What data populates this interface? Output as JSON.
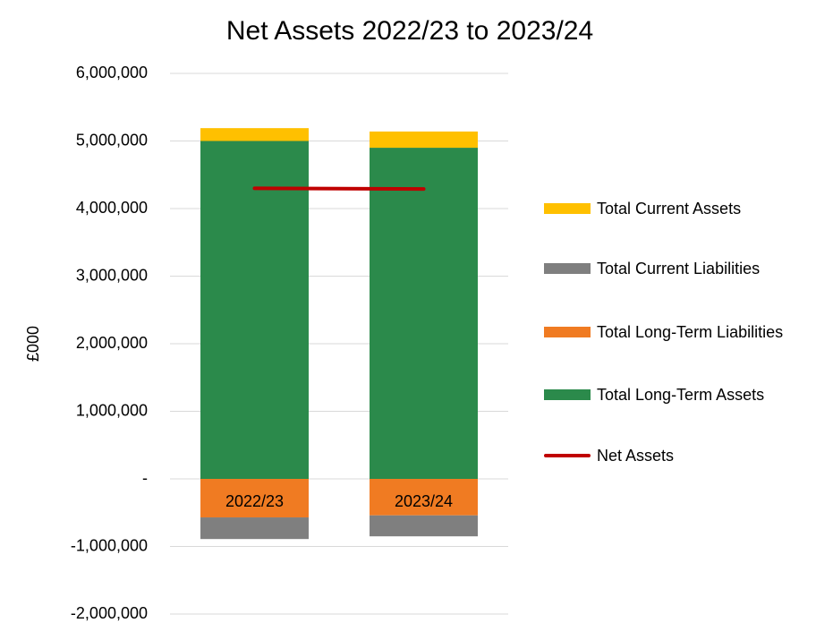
{
  "chart_data": {
    "type": "bar",
    "title": "Net Assets 2022/23 to 2023/24",
    "y_label": "£000",
    "categories": [
      "2022/23",
      "2023/24"
    ],
    "series": [
      {
        "name": "Total Current Assets",
        "color": "#ffc000",
        "values": [
          190000,
          240000
        ]
      },
      {
        "name": "Total Current Liabilities",
        "color": "#7f7f7f",
        "values": [
          -320000,
          -310000
        ]
      },
      {
        "name": "Total Long-Term Liabilities",
        "color": "#f07b22",
        "values": [
          -570000,
          -540000
        ]
      },
      {
        "name": "Total Long-Term Assets",
        "color": "#2b8a4b",
        "values": [
          5000000,
          4900000
        ]
      },
      {
        "name": "Net Assets",
        "color": "#c00000",
        "type": "line",
        "values": [
          4300000,
          4290000
        ]
      }
    ],
    "ylim": [
      -2000000,
      6000000
    ],
    "yticks": [
      {
        "value": -2000000,
        "label": "-2,000,000"
      },
      {
        "value": -1000000,
        "label": "-1,000,000"
      },
      {
        "value": 0,
        "label": "-"
      },
      {
        "value": 1000000,
        "label": "1,000,000"
      },
      {
        "value": 2000000,
        "label": "2,000,000"
      },
      {
        "value": 3000000,
        "label": "3,000,000"
      },
      {
        "value": 4000000,
        "label": "4,000,000"
      },
      {
        "value": 5000000,
        "label": "5,000,000"
      },
      {
        "value": 6000000,
        "label": "6,000,000"
      }
    ],
    "grid": true,
    "legend": "right"
  }
}
